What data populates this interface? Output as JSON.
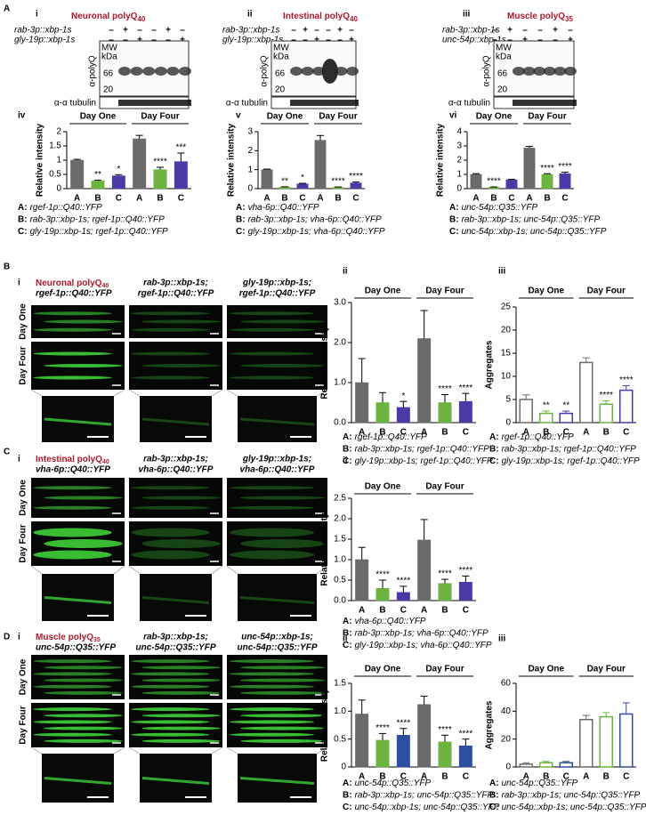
{
  "figure": {
    "letters": [
      "A",
      "B",
      "C",
      "D"
    ],
    "blots": [
      {
        "roman": "i",
        "title": "Neuronal polyQ",
        "title_sub": "40",
        "rows": [
          {
            "label": "rab-3p::xbp-1s",
            "signs": [
              "–",
              "+",
              "–",
              "–",
              "+",
              "–"
            ]
          },
          {
            "label": "gly-19p::xbp-1s",
            "signs": [
              "–",
              "–",
              "+",
              "–",
              "–",
              "+"
            ]
          }
        ],
        "mw": [
          "MW",
          "kDa"
        ],
        "mw_marks": [
          "66",
          "20"
        ],
        "antibody": "α-polyQ",
        "loading": "α-α tubulin"
      },
      {
        "roman": "ii",
        "title": "Intestinal polyQ",
        "title_sub": "40",
        "rows": [
          {
            "label": "rab-3p::xbp-1s",
            "signs": [
              "–",
              "+",
              "–",
              "–",
              "+",
              "–"
            ]
          },
          {
            "label": "gly-19p::xbp-1s",
            "signs": [
              "–",
              "–",
              "+",
              "–",
              "–",
              "+"
            ]
          }
        ],
        "mw": [
          "MW",
          "kDa"
        ],
        "mw_marks": [
          "66",
          "20"
        ],
        "antibody": "α-polyQ",
        "loading": "α-α tubulin"
      },
      {
        "roman": "iii",
        "title": "Muscle polyQ",
        "title_sub": "35",
        "rows": [
          {
            "label": "rab-3p::xbp-1s",
            "signs": [
              "–",
              "+",
              "–",
              "–",
              "+",
              "–"
            ]
          },
          {
            "label": "unc-54p::xbp-1s",
            "signs": [
              "–",
              "–",
              "+",
              "–",
              "–",
              "+"
            ]
          }
        ],
        "mw": [
          "MW",
          "kDa"
        ],
        "mw_marks": [
          "66",
          "20"
        ],
        "antibody": "α-polyQ",
        "loading": "α-α tubulin"
      }
    ],
    "microscopy": [
      {
        "roman": "i",
        "title": "Neuronal polyQ",
        "title_sub": "40",
        "columns": [
          [
            "rgef-1p::Q40::YFP"
          ],
          [
            "rab-3p::xbp-1s;",
            "rgef-1p::Q40::YFP"
          ],
          [
            "gly-19p::xbp-1s;",
            "rgef-1p::Q40::YFP"
          ]
        ],
        "rows": [
          "Day One",
          "Day Four"
        ]
      },
      {
        "roman": "i",
        "title": "Intestinal polyQ",
        "title_sub": "40",
        "columns": [
          [
            "vha-6p::Q40::YFP"
          ],
          [
            "rab-3p::xbp-1s;",
            "vha-6p::Q40::YFP"
          ],
          [
            "gly-19p::xbp-1s;",
            "vha-6p::Q40::YFP"
          ]
        ],
        "rows": [
          "Day One",
          "Day Four"
        ]
      },
      {
        "roman": "i",
        "title": "Muscle polyQ",
        "title_sub": "35",
        "columns": [
          [
            "unc-54p::Q35::YFP"
          ],
          [
            "rab-3p::xbp-1s;",
            "unc-54p::Q35::YFP"
          ],
          [
            "unc-54p::xbp-1s;",
            "unc-54p::Q35::YFP"
          ]
        ],
        "rows": [
          "Day One",
          "Day Four"
        ]
      }
    ]
  },
  "chart_data": [
    {
      "type": "bar",
      "roman": "iv",
      "ylabel": "Relative intensity",
      "categories": [
        "A",
        "B",
        "C",
        "A",
        "B",
        "C"
      ],
      "groups": [
        "Day One",
        "Day Four"
      ],
      "values": [
        1.0,
        0.27,
        0.45,
        1.75,
        0.67,
        0.95
      ],
      "errors": [
        0.03,
        0.03,
        0.04,
        0.12,
        0.08,
        0.3
      ],
      "colors": [
        "#6b6b6b",
        "#6cb33f",
        "#4b3aa5",
        "#6b6b6b",
        "#6cb33f",
        "#4b3aa5"
      ],
      "annotations": [
        null,
        "**",
        "*",
        null,
        "****",
        "***"
      ],
      "ylim": [
        0,
        2
      ],
      "yticks": [
        0,
        0.5,
        1,
        1.5,
        2
      ],
      "legend": [
        {
          "key": "A:",
          "text": "rgef-1p::Q40::YFP"
        },
        {
          "key": "B:",
          "text": "rab-3p::xbp-1s; rgef-1p::Q40::YFP"
        },
        {
          "key": "C:",
          "text": "gly-19p::xbp-1s; rgef-1p::Q40::YFP"
        }
      ]
    },
    {
      "type": "bar",
      "roman": "v",
      "ylabel": "Relative intensity",
      "categories": [
        "A",
        "B",
        "C",
        "A",
        "B",
        "C"
      ],
      "groups": [
        "Day One",
        "Day Four"
      ],
      "values": [
        1.0,
        0.08,
        0.25,
        2.55,
        0.07,
        0.3
      ],
      "errors": [
        0.03,
        0.02,
        0.03,
        0.25,
        0.02,
        0.05
      ],
      "colors": [
        "#6b6b6b",
        "#6cb33f",
        "#4b3aa5",
        "#6b6b6b",
        "#6cb33f",
        "#4b3aa5"
      ],
      "annotations": [
        null,
        "**",
        "*",
        null,
        "****",
        "****"
      ],
      "ylim": [
        0,
        3
      ],
      "yticks": [
        0,
        1,
        2,
        3
      ],
      "legend": [
        {
          "key": "A:",
          "text": "vha-6p::Q40::YFP"
        },
        {
          "key": "B:",
          "text": "rab-3p::xbp-1s; vha-6p::Q40::YFP"
        },
        {
          "key": "C:",
          "text": "gly-19p::xbp-1s; vha-6p::Q40::YFP"
        }
      ]
    },
    {
      "type": "bar",
      "roman": "vi",
      "ylabel": "Relative intensity",
      "categories": [
        "A",
        "B",
        "C",
        "A",
        "B",
        "C"
      ],
      "groups": [
        "Day One",
        "Day Four"
      ],
      "values": [
        1.0,
        0.1,
        0.62,
        2.85,
        1.0,
        1.05
      ],
      "errors": [
        0.05,
        0.02,
        0.03,
        0.12,
        0.05,
        0.1
      ],
      "colors": [
        "#6b6b6b",
        "#6cb33f",
        "#4b3aa5",
        "#6b6b6b",
        "#6cb33f",
        "#4b3aa5"
      ],
      "annotations": [
        null,
        "****",
        null,
        null,
        "****",
        "****"
      ],
      "ylim": [
        0,
        4
      ],
      "yticks": [
        0,
        1,
        2,
        3,
        4
      ],
      "legend": [
        {
          "key": "A:",
          "text": "unc-54p::Q35::YFP"
        },
        {
          "key": "B:",
          "text": "rab-3p::xbp-1s; unc-54p::Q35::YFP"
        },
        {
          "key": "C:",
          "text": "unc-54p::xbp-1s; unc-54p::Q35::YFP"
        }
      ]
    },
    {
      "type": "bar",
      "roman": "ii",
      "ylabel": "Relative intensity",
      "categories": [
        "A",
        "B",
        "C",
        "A",
        "B",
        "C"
      ],
      "groups": [
        "Day One",
        "Day Four"
      ],
      "values": [
        1.0,
        0.5,
        0.38,
        2.1,
        0.5,
        0.53
      ],
      "errors": [
        0.6,
        0.25,
        0.15,
        0.7,
        0.2,
        0.2
      ],
      "colors": [
        "#6b6b6b",
        "#6cb33f",
        "#4b3aa5",
        "#6b6b6b",
        "#6cb33f",
        "#4b3aa5"
      ],
      "annotations": [
        null,
        null,
        "*",
        null,
        "****",
        "****"
      ],
      "ylim": [
        0,
        3
      ],
      "yticks": [
        {
          "value": 0,
          "label": "0.0"
        },
        {
          "value": 1,
          "label": "1.0"
        },
        {
          "value": 2,
          "label": "2.0"
        },
        {
          "value": 3,
          "label": "3.0"
        }
      ],
      "legend": [
        {
          "key": "A:",
          "text": "rgef-1p::Q40::YFP"
        },
        {
          "key": "B:",
          "text": "rab-3p::xbp-1s; rgef-1p::Q40::YFP"
        },
        {
          "key": "C:",
          "text": "gly-19p::xbp-1s; rgef-1p::Q40::YFP"
        }
      ]
    },
    {
      "type": "bar",
      "roman": "iii",
      "ylabel": "Aggregates",
      "categories": [
        "A",
        "B",
        "C",
        "A",
        "B",
        "C"
      ],
      "groups": [
        "Day One",
        "Day Four"
      ],
      "values": [
        5,
        2,
        2,
        13,
        4,
        7
      ],
      "errors": [
        1,
        0.5,
        0.5,
        1,
        0.7,
        1
      ],
      "colors": [
        "#6b6b6b",
        "#6cb33f",
        "#4b3aa5",
        "#6b6b6b",
        "#6cb33f",
        "#4b3aa5"
      ],
      "style": "open",
      "annotations": [
        null,
        "**",
        "**",
        null,
        "****",
        "****"
      ],
      "ylim": [
        0,
        25
      ],
      "yticks": [
        0,
        5,
        10,
        15,
        20,
        25
      ],
      "legend": [
        {
          "key": "A:",
          "text": "rgef-1p::Q40::YFP"
        },
        {
          "key": "B:",
          "text": "rab-3p::xbp-1s; rgef-1p::Q40::YFP"
        },
        {
          "key": "C:",
          "text": "gly-19p::xbp-1s; rgef-1p::Q40::YFP"
        }
      ]
    },
    {
      "type": "bar",
      "roman": "ii",
      "ylabel": "Relative intensity",
      "categories": [
        "A",
        "B",
        "C",
        "A",
        "B",
        "C"
      ],
      "groups": [
        "Day One",
        "Day Four"
      ],
      "values": [
        1.0,
        0.3,
        0.2,
        1.48,
        0.42,
        0.45
      ],
      "errors": [
        0.3,
        0.2,
        0.15,
        0.5,
        0.1,
        0.15
      ],
      "colors": [
        "#6b6b6b",
        "#6cb33f",
        "#4b3aa5",
        "#6b6b6b",
        "#6cb33f",
        "#4b3aa5"
      ],
      "annotations": [
        null,
        "****",
        "****",
        null,
        "****",
        "****"
      ],
      "ylim": [
        0,
        2.5
      ],
      "yticks": [
        {
          "value": 0,
          "label": "0.0"
        },
        0.5,
        {
          "value": 1,
          "label": "1.0"
        },
        1.5,
        {
          "value": 2,
          "label": "2.0"
        },
        2.5
      ],
      "legend": [
        {
          "key": "A:",
          "text": "vha-6p::Q40::YFP"
        },
        {
          "key": "B:",
          "text": "rab-3p::xbp-1s; vha-6p::Q40::YFP"
        },
        {
          "key": "C:",
          "text": "gly-19p::xbp-1s; vha-6p::Q40::YFP"
        }
      ]
    },
    {
      "type": "bar",
      "roman": "ii",
      "ylabel": "Relative intensity",
      "categories": [
        "A",
        "B",
        "C",
        "A",
        "B",
        "C"
      ],
      "groups": [
        "Day One",
        "Day Four"
      ],
      "values": [
        0.95,
        0.48,
        0.57,
        1.12,
        0.45,
        0.38
      ],
      "errors": [
        0.25,
        0.12,
        0.12,
        0.15,
        0.12,
        0.12
      ],
      "colors": [
        "#6b6b6b",
        "#6cb33f",
        "#2c4fa1",
        "#6b6b6b",
        "#6cb33f",
        "#2c4fa1"
      ],
      "annotations": [
        null,
        "****",
        "****",
        null,
        "****",
        "****"
      ],
      "ylim": [
        0,
        1.5
      ],
      "yticks": [
        0,
        0.5,
        {
          "value": 1,
          "label": "1.0"
        },
        1.5
      ],
      "legend": [
        {
          "key": "A:",
          "text": "unc-54p::Q35::YFP"
        },
        {
          "key": "B:",
          "text": "rab-3p::xbp-1s; unc-54p::Q35::YFP"
        },
        {
          "key": "C:",
          "text": "unc-54p::xbp-1s; unc-54p::Q35::YFP"
        }
      ]
    },
    {
      "type": "bar",
      "roman": "iii",
      "ylabel": "Aggregates",
      "categories": [
        "A",
        "B",
        "C",
        "A",
        "B",
        "C"
      ],
      "groups": [
        "Day One",
        "Day Four"
      ],
      "values": [
        2,
        3,
        3,
        34,
        36,
        38
      ],
      "errors": [
        1,
        1,
        1,
        3,
        3,
        8
      ],
      "colors": [
        "#6b6b6b",
        "#6cb33f",
        "#2c4fa1",
        "#6b6b6b",
        "#6cb33f",
        "#2c4fa1"
      ],
      "style": "open",
      "ylim": [
        0,
        60
      ],
      "yticks": [
        0,
        20,
        40,
        60
      ],
      "legend": [
        {
          "key": "A:",
          "text": "unc-54p::Q35::YFP"
        },
        {
          "key": "B:",
          "text": "rab-3p::xbp-1s; unc-54p::Q35::YFP"
        },
        {
          "key": "C:",
          "text": "unc-54p::xbp-1s; unc-54p::Q35::YFP"
        }
      ]
    }
  ]
}
